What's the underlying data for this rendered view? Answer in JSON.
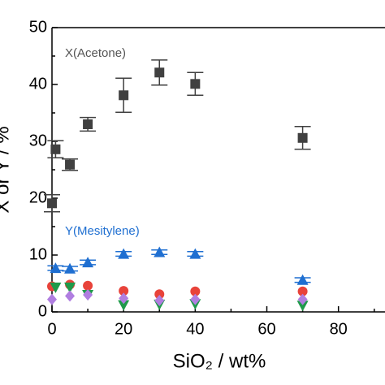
{
  "chart_data": {
    "type": "scatter",
    "xlabel": "SiO₂ / wt%",
    "ylabel": "X or Y / %",
    "xlim": [
      0,
      93
    ],
    "ylim": [
      0,
      50
    ],
    "xticks": [
      0,
      20,
      40,
      60,
      80
    ],
    "yticks": [
      0,
      10,
      20,
      30,
      40,
      50
    ],
    "xminor": [
      10,
      30,
      50,
      70,
      90
    ],
    "yminor": [
      5,
      15,
      25,
      35,
      45
    ],
    "series": [
      {
        "name": "X(Acetone)",
        "color": "#404040",
        "marker": "square",
        "x": [
          0,
          1,
          5,
          10,
          20,
          30,
          40,
          70
        ],
        "values": [
          19.1,
          28.6,
          25.9,
          33,
          38.1,
          42.1,
          40.1,
          30.6
        ],
        "errors": [
          1.5,
          1.5,
          1,
          1.2,
          3,
          2.2,
          2,
          2
        ]
      },
      {
        "name": "Y(Mesitylene)",
        "color": "#1f6fd1",
        "marker": "triangle-up",
        "x": [
          1,
          5,
          10,
          20,
          30,
          40,
          70
        ],
        "values": [
          7.7,
          7.6,
          8.7,
          10.2,
          10.5,
          10.2,
          5.6
        ],
        "errors": [
          0.4,
          0.4,
          0.4,
          0.4,
          0.4,
          0.4,
          0.4
        ]
      },
      {
        "color": "#e8433a",
        "marker": "circle",
        "x": [
          0,
          5,
          10,
          20,
          30,
          40,
          70
        ],
        "values": [
          4.5,
          4.8,
          4.6,
          3.7,
          3.1,
          3.6,
          3.6
        ]
      },
      {
        "color": "#1f9a4a",
        "marker": "triangle-down",
        "x": [
          1,
          5,
          10,
          20,
          30,
          40,
          70
        ],
        "values": [
          4.3,
          4.3,
          3,
          1.2,
          1.3,
          1.4,
          1.1
        ]
      },
      {
        "color": "#b07ee0",
        "marker": "diamond",
        "x": [
          0,
          5,
          10,
          20,
          30,
          40,
          70
        ],
        "values": [
          2.2,
          2.8,
          3.0,
          2.4,
          2.0,
          2.2,
          2.2
        ]
      }
    ]
  }
}
